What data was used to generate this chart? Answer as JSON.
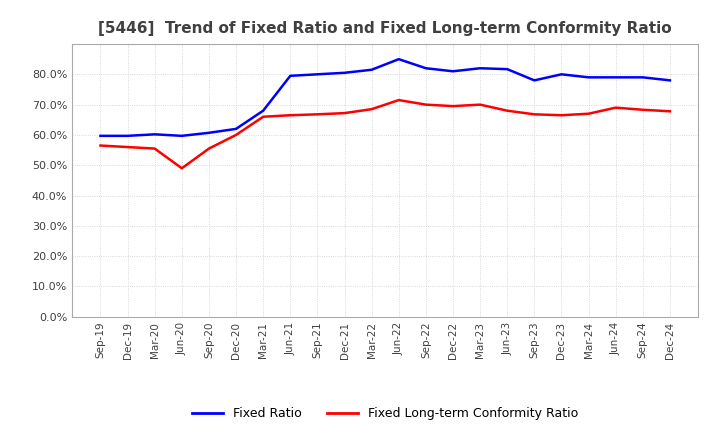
{
  "title": "[5446]  Trend of Fixed Ratio and Fixed Long-term Conformity Ratio",
  "x_labels": [
    "Sep-19",
    "Dec-19",
    "Mar-20",
    "Jun-20",
    "Sep-20",
    "Dec-20",
    "Mar-21",
    "Jun-21",
    "Sep-21",
    "Dec-21",
    "Mar-22",
    "Jun-22",
    "Sep-22",
    "Dec-22",
    "Mar-23",
    "Jun-23",
    "Sep-23",
    "Dec-23",
    "Mar-24",
    "Jun-24",
    "Sep-24",
    "Dec-24"
  ],
  "fixed_ratio": [
    0.597,
    0.597,
    0.602,
    0.597,
    0.607,
    0.62,
    0.68,
    0.795,
    0.8,
    0.805,
    0.815,
    0.85,
    0.82,
    0.81,
    0.82,
    0.817,
    0.78,
    0.8,
    0.79,
    0.79,
    0.79,
    0.78
  ],
  "fixed_lt_ratio": [
    0.565,
    0.56,
    0.555,
    0.49,
    0.555,
    0.6,
    0.66,
    0.665,
    0.668,
    0.672,
    0.685,
    0.715,
    0.7,
    0.695,
    0.7,
    0.68,
    0.668,
    0.665,
    0.67,
    0.69,
    0.683,
    0.678
  ],
  "fixed_ratio_color": "#0000FF",
  "fixed_lt_ratio_color": "#FF0000",
  "ylim": [
    0.0,
    0.9
  ],
  "yticks": [
    0.0,
    0.1,
    0.2,
    0.3,
    0.4,
    0.5,
    0.6,
    0.7,
    0.8
  ],
  "background_color": "#FFFFFF",
  "plot_bg_color": "#FFFFFF",
  "grid_color": "#CCCCCC",
  "title_fontsize": 11,
  "title_color": "#404040",
  "tick_color": "#404040",
  "legend_labels": [
    "Fixed Ratio",
    "Fixed Long-term Conformity Ratio"
  ]
}
